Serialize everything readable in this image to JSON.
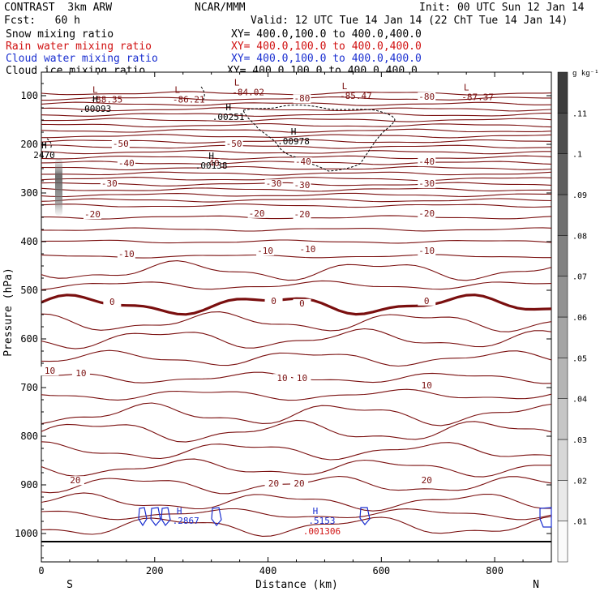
{
  "header": {
    "model": "CONTRAST  3km ARW",
    "center": "NCAR/MMM",
    "init": "Init: 00 UTC Sun 12 Jan 14",
    "fcst": "Fcst:   60 h",
    "valid": "Valid: 12 UTC Tue 14 Jan 14 (22 ChT Tue 14 Jan 14)"
  },
  "legend": [
    {
      "field": "Snow mixing ratio",
      "xy": "XY= 400.0,100.0 to 400.0,400.0",
      "color": "#000000"
    },
    {
      "field": "Rain water mixing ratio",
      "xy": "XY= 400.0,100.0 to 400.0,400.0",
      "color": "#d01010"
    },
    {
      "field": "Cloud water mixing ratio",
      "xy": "XY= 400.0,100.0 to 400.0,400.0",
      "color": "#1a2fd0"
    },
    {
      "field": "Cloud ice mixing ratio",
      "xy": "XY= 400.0,100.0 to 400.0,400.0",
      "color": "#000000"
    }
  ],
  "chart_data": {
    "type": "cross-section",
    "xlabel": "Distance (km)",
    "ylabel": "Pressure (hPa)",
    "xlim": [
      0,
      900
    ],
    "ylim": [
      1060,
      50
    ],
    "x_ticks": [
      0,
      200,
      400,
      600,
      800
    ],
    "y_ticks": [
      100,
      200,
      300,
      400,
      500,
      600,
      700,
      800,
      900,
      1000
    ],
    "endpoint_labels": {
      "left": "S",
      "right": "N"
    },
    "colorbar": {
      "unit": "g kg⁻¹",
      "ticks": [
        ".01",
        ".02",
        ".03",
        ".04",
        ".05",
        ".06",
        ".07",
        ".08",
        ".09",
        ".1",
        ".11"
      ]
    },
    "temperature_labels": [
      {
        "text": "-80",
        "x": 460,
        "p": 112
      },
      {
        "text": "-80",
        "x": 680,
        "p": 108
      },
      {
        "text": "-50",
        "x": 140,
        "p": 205
      },
      {
        "text": "-50",
        "x": 340,
        "p": 205
      },
      {
        "text": "-40",
        "x": 150,
        "p": 245
      },
      {
        "text": "-40",
        "x": 300,
        "p": 245
      },
      {
        "text": "-40",
        "x": 462,
        "p": 242
      },
      {
        "text": "-40",
        "x": 680,
        "p": 242
      },
      {
        "text": "-30",
        "x": 120,
        "p": 287
      },
      {
        "text": "-30",
        "x": 410,
        "p": 287
      },
      {
        "text": "-30",
        "x": 460,
        "p": 290
      },
      {
        "text": "-30",
        "x": 680,
        "p": 287
      },
      {
        "text": "-20",
        "x": 90,
        "p": 350
      },
      {
        "text": "-20",
        "x": 380,
        "p": 348
      },
      {
        "text": "-20",
        "x": 460,
        "p": 350
      },
      {
        "text": "-20",
        "x": 680,
        "p": 348
      },
      {
        "text": "-10",
        "x": 150,
        "p": 432
      },
      {
        "text": "-10",
        "x": 395,
        "p": 425
      },
      {
        "text": "-10",
        "x": 470,
        "p": 422
      },
      {
        "text": "-10",
        "x": 680,
        "p": 425
      },
      {
        "text": "0",
        "x": 125,
        "p": 530
      },
      {
        "text": "0",
        "x": 410,
        "p": 528
      },
      {
        "text": "0",
        "x": 460,
        "p": 533
      },
      {
        "text": "0",
        "x": 680,
        "p": 528
      },
      {
        "text": "10",
        "x": 15,
        "p": 672
      },
      {
        "text": "10",
        "x": 70,
        "p": 677
      },
      {
        "text": "10",
        "x": 425,
        "p": 687
      },
      {
        "text": "10",
        "x": 460,
        "p": 687
      },
      {
        "text": "10",
        "x": 680,
        "p": 702
      },
      {
        "text": "20",
        "x": 60,
        "p": 897
      },
      {
        "text": "20",
        "x": 410,
        "p": 903
      },
      {
        "text": "20",
        "x": 455,
        "p": 903
      },
      {
        "text": "20",
        "x": 680,
        "p": 897
      }
    ],
    "extrema": [
      {
        "kind": "L",
        "text": "-88.35",
        "x": 115,
        "p": 104
      },
      {
        "kind": "L",
        "text": "-86.21",
        "x": 260,
        "p": 104
      },
      {
        "kind": "L",
        "text": "-84.02",
        "x": 365,
        "p": 89
      },
      {
        "kind": "L",
        "text": "-85.47",
        "x": 555,
        "p": 97
      },
      {
        "kind": "L",
        "text": "-87.37",
        "x": 770,
        "p": 99
      }
    ],
    "snow_maxima": [
      {
        "kind": "H",
        "text": ".00093",
        "x": 95,
        "p": 123
      },
      {
        "kind": "H",
        "text": ".00251",
        "x": 330,
        "p": 140
      },
      {
        "kind": "H",
        "text": ".00978",
        "x": 445,
        "p": 190
      },
      {
        "kind": "H",
        "text": ".00138",
        "x": 300,
        "p": 240
      },
      {
        "kind": "H",
        "text": "2470",
        "x": 5,
        "p": 218
      }
    ],
    "cloud_water_maxima": [
      {
        "kind": "H",
        "text": ".2867",
        "x": 255,
        "p": 970
      },
      {
        "kind": "H",
        "text": ".5153",
        "x": 495,
        "p": 970
      }
    ],
    "rain_maxima": [
      {
        "kind": "H",
        "text": ".001306",
        "x": 495,
        "p": 985
      }
    ]
  }
}
